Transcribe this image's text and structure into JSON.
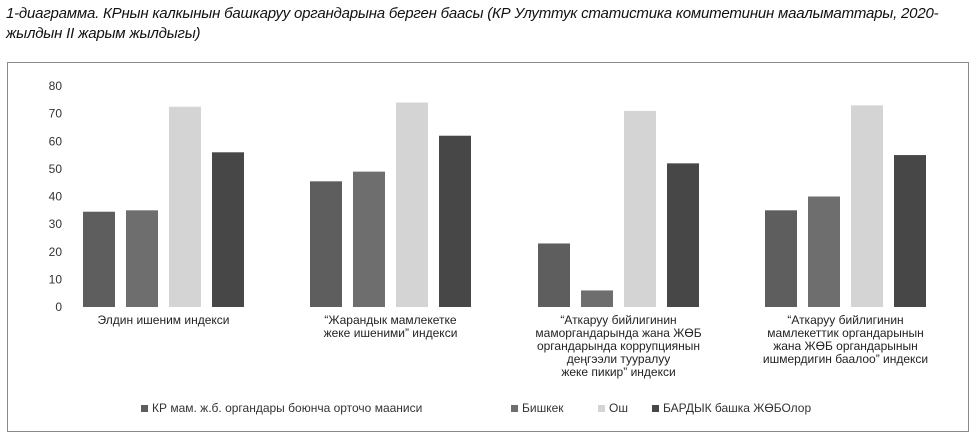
{
  "caption": "1-диаграмма. КРнын калкынын башкаруу органдарына берген баасы (КР Улуттук статистика комитетинин маалыматтары, 2020-жылдын II жарым жылдыгы)",
  "chart_data": {
    "type": "bar",
    "categories": [
      [
        "Элдин ишеним индекси"
      ],
      [
        "“Жарандык мамлекетке",
        "жеке ишеними” индекси"
      ],
      [
        "“Аткаруу бийлигинин",
        "маморгандарында жана ЖӨБ",
        "органдарында коррупциянын",
        "деңгээли тууралуу",
        "жеке пикир” индекси"
      ],
      [
        "“Аткаруу бийлигинин",
        "мамлекеттик органдарынын",
        "жана ЖӨБ органдарынын",
        "ишмердигин баалоо” индекси"
      ]
    ],
    "series": [
      {
        "name": "КР мам. ж.б. органдары боюнча орточо мааниси",
        "color": "#5e5e5e",
        "values": [
          34.5,
          45.5,
          23,
          35
        ]
      },
      {
        "name": "Бишкек",
        "color": "#6e6e6e",
        "values": [
          35,
          49,
          6,
          40
        ]
      },
      {
        "name": "Ош",
        "color": "#d4d4d4",
        "values": [
          72.5,
          74,
          71,
          73
        ]
      },
      {
        "name": "БАРДЫК башка ЖӨБОлор",
        "color": "#474747",
        "values": [
          56,
          62,
          52,
          55
        ]
      }
    ],
    "yticks": [
      0,
      10,
      20,
      30,
      40,
      50,
      60,
      70,
      80
    ],
    "ylim": [
      0,
      80
    ],
    "grid": false,
    "legend_position": "bottom"
  }
}
